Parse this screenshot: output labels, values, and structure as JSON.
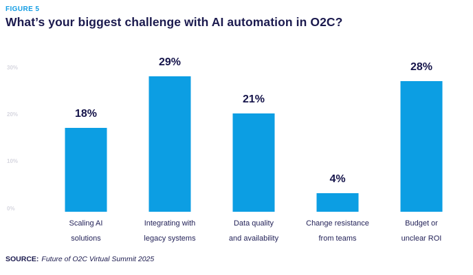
{
  "figure": {
    "label": "FIGURE 5",
    "title": "What’s your biggest challenge with AI automation in O2C?"
  },
  "chart_data": {
    "type": "bar",
    "title": "What’s your biggest challenge with AI automation in O2C?",
    "categories": [
      [
        "Scaling AI",
        "solutions"
      ],
      [
        "Integrating with",
        "legacy systems"
      ],
      [
        "Data quality",
        "and availability"
      ],
      [
        "Change resistance",
        "from teams"
      ],
      [
        "Budget or",
        "unclear ROI"
      ]
    ],
    "values": [
      18,
      29,
      21,
      4,
      28
    ],
    "value_labels": [
      "18%",
      "29%",
      "21%",
      "4%",
      "28%"
    ],
    "xlabel": "",
    "ylabel": "",
    "ylim": [
      0,
      30
    ],
    "y_ticks": [
      "0%",
      "10%",
      "20%",
      "30%"
    ],
    "y_tick_values": [
      0,
      10,
      20,
      30
    ],
    "grid": false,
    "legend": null,
    "bar_color": "#0C9EE3"
  },
  "source": {
    "label": "SOURCE:",
    "text": "Future of O2C Virtual Summit 2025"
  },
  "colors": {
    "accent_blue": "#0C9EE3",
    "figure_label_blue": "#119CE3",
    "navy": "#1B1A4E",
    "axis_gray": "#D6D6DF"
  }
}
